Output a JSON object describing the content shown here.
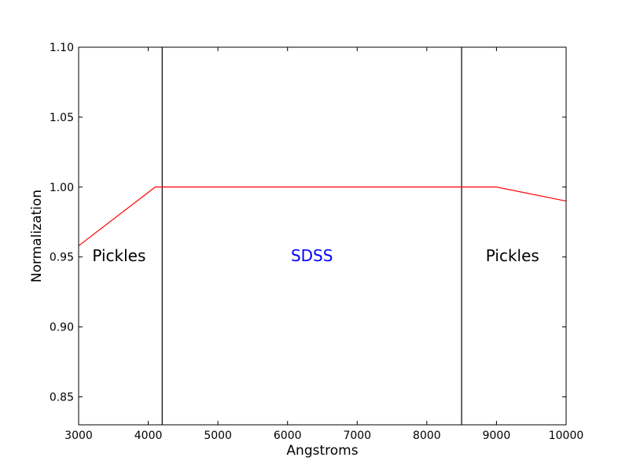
{
  "chart_data": {
    "type": "line",
    "xlabel": "Angstroms",
    "ylabel": "Normalization",
    "xlim": [
      3000,
      10000
    ],
    "ylim": [
      0.83,
      1.1
    ],
    "xticks": [
      3000,
      4000,
      5000,
      6000,
      7000,
      8000,
      9000,
      10000
    ],
    "xtick_labels": [
      "3000",
      "4000",
      "5000",
      "6000",
      "7000",
      "8000",
      "9000",
      "10000"
    ],
    "yticks": [
      0.85,
      0.9,
      0.95,
      1.0,
      1.05,
      1.1
    ],
    "ytick_labels": [
      "0.85",
      "0.90",
      "0.95",
      "1.00",
      "1.05",
      "1.10"
    ],
    "grid": false,
    "series": [
      {
        "color": "#ff0000",
        "x": [
          3000,
          4100,
          9000,
          10000
        ],
        "y": [
          0.958,
          1.0,
          1.0,
          0.99
        ]
      }
    ],
    "vlines": [
      {
        "x": 4200,
        "color": "#000000"
      },
      {
        "x": 8500,
        "color": "#000000"
      }
    ],
    "annotations": [
      {
        "text": "Pickles",
        "x": 3580,
        "y": 0.947,
        "color": "#000000"
      },
      {
        "text": "SDSS",
        "x": 6350,
        "y": 0.947,
        "color": "#0000ff"
      },
      {
        "text": "Pickles",
        "x": 9230,
        "y": 0.947,
        "color": "#000000"
      }
    ]
  }
}
